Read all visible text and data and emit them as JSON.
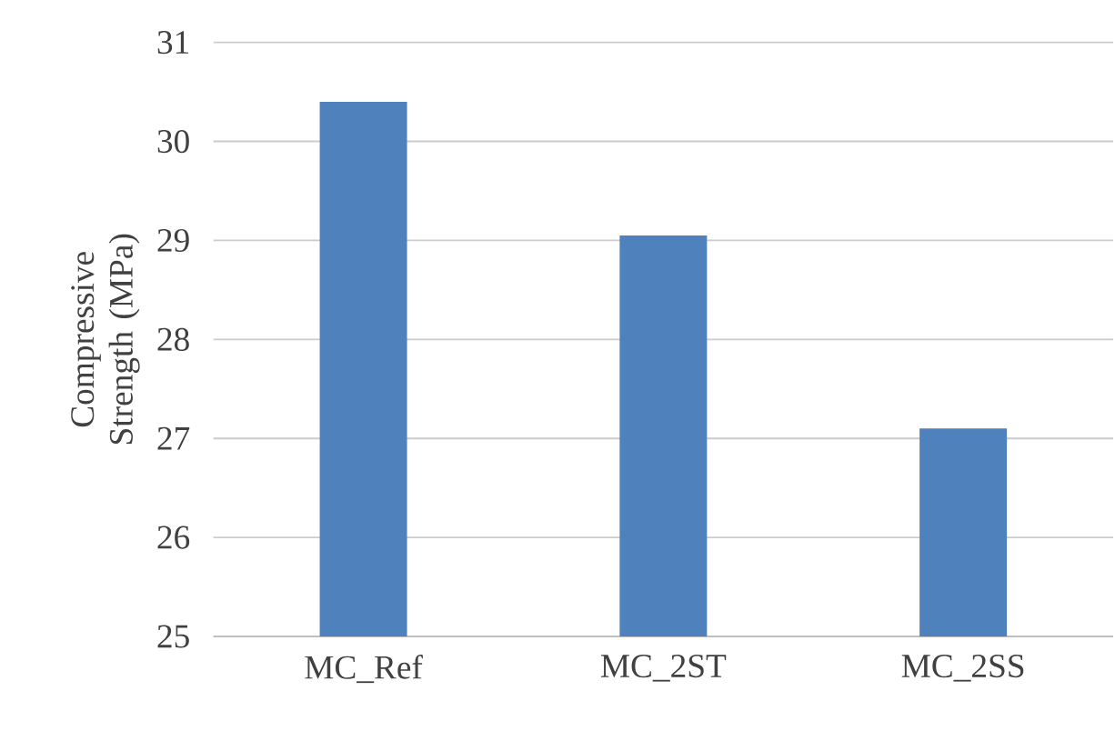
{
  "chart_data": {
    "type": "bar",
    "ylabel": "Compressive Strength (MPa)",
    "categories": [
      "MC_Ref",
      "MC_2ST",
      "MC_2SS"
    ],
    "values": [
      30.4,
      29.05,
      27.1
    ],
    "color": "#4f81bd",
    "ylim": [
      25,
      31
    ],
    "yticks": [
      25,
      26,
      27,
      28,
      29,
      30,
      31
    ],
    "grid": "y"
  }
}
